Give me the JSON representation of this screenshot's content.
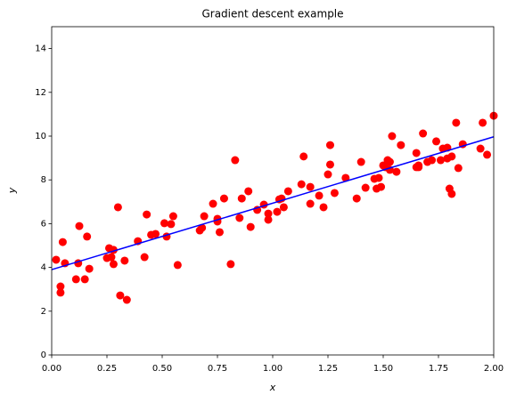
{
  "chart_data": {
    "type": "scatter",
    "title": "Gradient descent example",
    "x_label": "x",
    "y_label": "y",
    "xlim": [
      0,
      2
    ],
    "ylim": [
      0,
      15
    ],
    "xticks": [
      {
        "value": 0,
        "label": "0.00"
      },
      {
        "value": 0.25,
        "label": "0.25"
      },
      {
        "value": 0.5,
        "label": "0.50"
      },
      {
        "value": 0.75,
        "label": "0.75"
      },
      {
        "value": 1,
        "label": "1.00"
      },
      {
        "value": 1.25,
        "label": "1.25"
      },
      {
        "value": 1.5,
        "label": "1.50"
      },
      {
        "value": 1.75,
        "label": "1.75"
      },
      {
        "value": 2,
        "label": "2.00"
      }
    ],
    "yticks": [
      0,
      2,
      4,
      6,
      8,
      10,
      12,
      14
    ],
    "grid": false,
    "series": [
      {
        "mode": "markers",
        "color": "#ff0000",
        "x": [
          0.02,
          0.05,
          0.04,
          0.04,
          0.06,
          0.11,
          0.12,
          0.125,
          0.15,
          0.16,
          0.17,
          0.25,
          0.26,
          0.28,
          0.28,
          0.27,
          0.3,
          0.31,
          0.33,
          0.34,
          0.39,
          0.42,
          0.43,
          0.45,
          0.47,
          0.52,
          0.51,
          0.54,
          0.55,
          0.57,
          0.67,
          0.68,
          0.69,
          0.73,
          0.75,
          0.75,
          0.76,
          0.78,
          0.81,
          0.83,
          0.85,
          0.86,
          0.89,
          0.9,
          0.93,
          0.96,
          0.98,
          0.98,
          1.02,
          1.03,
          1.04,
          1.05,
          1.07,
          1.13,
          1.14,
          1.17,
          1.17,
          1.21,
          1.23,
          1.25,
          1.26,
          1.26,
          1.28,
          1.33,
          1.38,
          1.4,
          1.42,
          1.46,
          1.47,
          1.48,
          1.49,
          1.5,
          1.51,
          1.52,
          1.53,
          1.53,
          1.54,
          1.56,
          1.58,
          1.65,
          1.65,
          1.66,
          1.66,
          1.68,
          1.7,
          1.72,
          1.74,
          1.76,
          1.77,
          1.79,
          1.79,
          1.8,
          1.81,
          1.81,
          1.83,
          1.84,
          1.86,
          1.94,
          1.95,
          1.97,
          2.0
        ],
        "values": [
          4.35,
          5.16,
          3.13,
          2.85,
          4.19,
          3.46,
          4.19,
          5.89,
          3.46,
          5.41,
          3.94,
          4.43,
          4.88,
          4.8,
          4.15,
          4.47,
          6.75,
          2.72,
          4.31,
          2.52,
          5.2,
          4.47,
          6.42,
          5.49,
          5.53,
          5.41,
          6.02,
          5.98,
          6.34,
          4.11,
          5.69,
          5.81,
          6.34,
          6.91,
          6.22,
          6.1,
          5.61,
          7.15,
          4.15,
          8.9,
          6.26,
          7.15,
          7.48,
          5.85,
          6.63,
          6.87,
          6.46,
          6.18,
          6.54,
          7.11,
          7.15,
          6.75,
          7.48,
          7.8,
          9.07,
          6.91,
          7.68,
          7.28,
          6.75,
          8.25,
          9.59,
          8.7,
          7.4,
          8.09,
          7.15,
          8.82,
          7.64,
          8.05,
          7.6,
          8.09,
          7.68,
          8.66,
          8.58,
          8.9,
          8.46,
          8.82,
          10.0,
          8.37,
          9.59,
          9.23,
          8.58,
          8.66,
          8.58,
          10.12,
          8.82,
          8.9,
          9.76,
          8.9,
          9.43,
          8.98,
          9.47,
          7.6,
          9.07,
          7.36,
          10.61,
          8.54,
          9.63,
          9.43,
          10.61,
          9.15,
          10.93
        ]
      },
      {
        "mode": "line",
        "color": "#0000ff",
        "x": [
          0,
          2
        ],
        "values": [
          3.9,
          9.97
        ]
      }
    ]
  }
}
